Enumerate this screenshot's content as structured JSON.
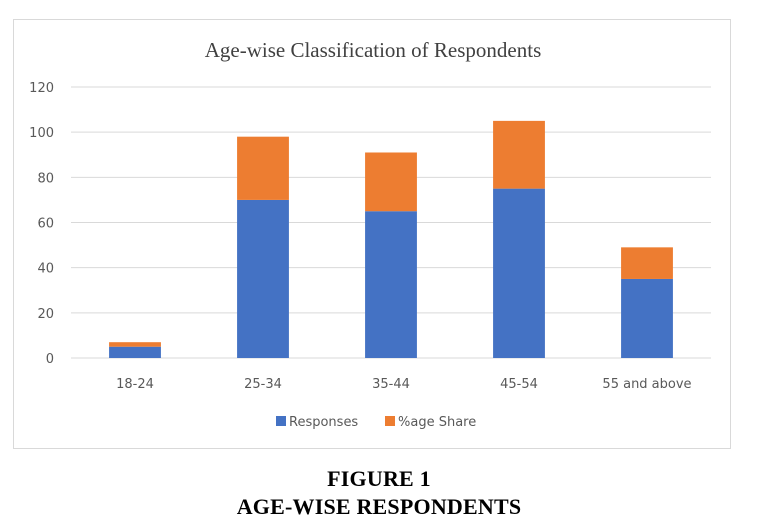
{
  "caption": {
    "figure": "FIGURE 1",
    "description": "AGE-WISE RESPONDENTS"
  },
  "colors": {
    "responses": "#4472c4",
    "share": "#ed7d31",
    "grid": "#d9d9d9",
    "text": "#595959"
  },
  "chart_data": {
    "type": "bar",
    "stacked": true,
    "title": "Age-wise Classification of Respondents",
    "xlabel": "",
    "ylabel": "",
    "categories": [
      "18-24",
      "25-34",
      "35-44",
      "45-54",
      "55 and above"
    ],
    "series": [
      {
        "name": "Responses",
        "values": [
          5,
          70,
          65,
          75,
          35
        ]
      },
      {
        "name": "%age Share",
        "values": [
          2,
          28,
          26,
          30,
          14
        ]
      }
    ],
    "ylim": [
      0,
      120
    ],
    "yticks": [
      0,
      20,
      40,
      60,
      80,
      100,
      120
    ],
    "grid": true,
    "legend_position": "bottom"
  }
}
